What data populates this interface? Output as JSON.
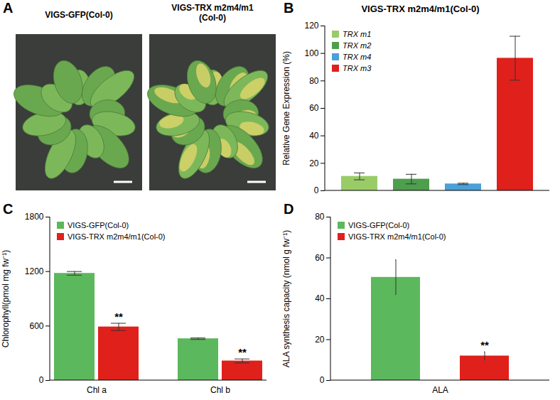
{
  "chart_data": [
    {
      "type": "image",
      "panel": "A",
      "labels": [
        "VIGS-GFP(Col-0)",
        "VIGS-TRX m2m4/m1 (Col-0)"
      ]
    },
    {
      "type": "bar",
      "panel": "B",
      "title": "VIGS-TRX m2m4/m1(Col-0)",
      "y_label": "Relative Gene Expression (%)",
      "categories": [
        "TRX m1",
        "TRX m2",
        "TRX m4",
        "TRX m3"
      ],
      "values": [
        10.5,
        8.5,
        5,
        96.5
      ],
      "errors": [
        2.5,
        3.5,
        0.5,
        16
      ],
      "colors": [
        "#99cc66",
        "#4d9e4d",
        "#4aa0d8",
        "#e0201b"
      ],
      "ylim": [
        0,
        120
      ],
      "yticks": [
        0,
        20,
        40,
        60,
        80,
        100,
        120
      ],
      "tick_labels": "y",
      "legend": "top-left"
    },
    {
      "type": "bar",
      "panel": "C",
      "y_label": "Chlorophyll(pmol mg fw⁻¹)",
      "categories": [
        "Chl a",
        "Chl b"
      ],
      "series": [
        {
          "name": "VIGS-GFP(Col-0)",
          "color": "#5cb85c",
          "values": [
            1180,
            460
          ],
          "errors": [
            20,
            8
          ]
        },
        {
          "name": "VIGS-TRX m2m4/m1(Col-0)",
          "color": "#e0201b",
          "values": [
            590,
            215
          ],
          "errors": [
            40,
            22
          ],
          "annotations": [
            "**",
            "**"
          ]
        }
      ],
      "ylim": [
        0,
        1800
      ],
      "yticks": [
        0,
        600,
        1200,
        1800
      ],
      "legend": "top-left"
    },
    {
      "type": "bar",
      "panel": "D",
      "y_label": "ALA synthesis capacity (nmol g fw⁻¹)",
      "categories": [
        "ALA"
      ],
      "series": [
        {
          "name": "VIGS-GFP(Col-0)",
          "color": "#5cb85c",
          "values": [
            50.5
          ],
          "errors": [
            8.5
          ]
        },
        {
          "name": "VIGS-TRX m2m4/m1(Col-0)",
          "color": "#e0201b",
          "values": [
            12
          ],
          "errors": [
            2
          ],
          "annotations": [
            "**"
          ]
        }
      ],
      "ylim": [
        0,
        80
      ],
      "yticks": [
        0,
        20,
        40,
        60,
        80
      ],
      "legend": "top-left"
    }
  ]
}
